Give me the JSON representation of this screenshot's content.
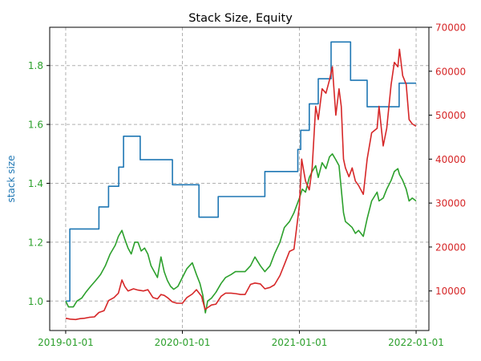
{
  "chart_data": {
    "type": "line",
    "title": "Stack Size, Equity",
    "xlabel": "",
    "ylabel": "stack size",
    "ylabel_right": "",
    "grid": true,
    "x_type": "date",
    "x_ticks": [
      "2019-01-01",
      "2020-01-01",
      "2021-01-01",
      "2022-01-01"
    ],
    "xlim": [
      "2018-11-12",
      "2022-02-10"
    ],
    "ylim_left": [
      0.9,
      1.93
    ],
    "ylim_right": [
      1000,
      70000
    ],
    "y_ticks_left": [
      "1.0",
      "1.2",
      "1.4",
      "1.6",
      "1.8"
    ],
    "y_ticks_right": [
      "10000",
      "20000",
      "30000",
      "40000",
      "50000",
      "60000",
      "70000"
    ],
    "colors": {
      "stack_size": "#1f77b4",
      "equity": "#2ca02c",
      "price": "#d62728",
      "grid": "#b0b0b0",
      "x_tick_labels": "#2ca02c",
      "left_tick_labels": "#2ca02c",
      "right_tick_labels": "#d62728",
      "left_axis_label": "#1f77b4"
    },
    "series": [
      {
        "key": "stack_size",
        "axis": "left",
        "style": "step",
        "color": "#1f77b4",
        "x": [
          "2019-01-01",
          "2019-01-14",
          "2019-03-15",
          "2019-04-15",
          "2019-05-15",
          "2019-06-16",
          "2019-07-01",
          "2019-08-22",
          "2019-09-15",
          "2019-11-18",
          "2019-12-01",
          "2020-02-22",
          "2020-04-22",
          "2020-07-15",
          "2020-09-15",
          "2020-12-01",
          "2020-12-27",
          "2021-01-05",
          "2021-02-01",
          "2021-03-01",
          "2021-04-10",
          "2021-05-15",
          "2021-06-10",
          "2021-07-15",
          "2021-08-01",
          "2021-09-15",
          "2021-10-01",
          "2021-11-09",
          "2021-11-25",
          "2022-01-01"
        ],
        "y": [
          1.0,
          1.245,
          1.245,
          1.32,
          1.39,
          1.455,
          1.56,
          1.48,
          1.48,
          1.48,
          1.395,
          1.285,
          1.355,
          1.355,
          1.44,
          1.44,
          1.515,
          1.58,
          1.67,
          1.755,
          1.88,
          1.88,
          1.75,
          1.75,
          1.66,
          1.66,
          1.66,
          1.74,
          1.74,
          1.74
        ]
      },
      {
        "key": "equity",
        "axis": "left",
        "color": "#2ca02c",
        "x": [
          "2019-01-01",
          "2019-01-10",
          "2019-01-25",
          "2019-02-05",
          "2019-02-20",
          "2019-03-05",
          "2019-03-20",
          "2019-04-05",
          "2019-04-20",
          "2019-05-05",
          "2019-05-20",
          "2019-06-05",
          "2019-06-15",
          "2019-06-26",
          "2019-07-05",
          "2019-07-15",
          "2019-07-25",
          "2019-08-05",
          "2019-08-15",
          "2019-08-25",
          "2019-09-05",
          "2019-09-15",
          "2019-09-25",
          "2019-10-05",
          "2019-10-15",
          "2019-10-26",
          "2019-11-05",
          "2019-11-15",
          "2019-11-25",
          "2019-12-05",
          "2019-12-18",
          "2020-01-01",
          "2020-01-15",
          "2020-02-01",
          "2020-02-14",
          "2020-02-25",
          "2020-03-05",
          "2020-03-13",
          "2020-03-20",
          "2020-04-01",
          "2020-04-15",
          "2020-05-01",
          "2020-05-15",
          "2020-06-01",
          "2020-06-15",
          "2020-07-01",
          "2020-07-15",
          "2020-08-01",
          "2020-08-15",
          "2020-09-01",
          "2020-09-15",
          "2020-10-01",
          "2020-10-15",
          "2020-11-01",
          "2020-11-15",
          "2020-12-01",
          "2020-12-15",
          "2021-01-01",
          "2021-01-10",
          "2021-01-20",
          "2021-02-01",
          "2021-02-10",
          "2021-02-21",
          "2021-03-01",
          "2021-03-13",
          "2021-03-25",
          "2021-04-05",
          "2021-04-14",
          "2021-04-25",
          "2021-05-05",
          "2021-05-12",
          "2021-05-19",
          "2021-05-25",
          "2021-06-05",
          "2021-06-15",
          "2021-06-25",
          "2021-07-05",
          "2021-07-20",
          "2021-08-01",
          "2021-08-15",
          "2021-09-01",
          "2021-09-07",
          "2021-09-20",
          "2021-10-01",
          "2021-10-15",
          "2021-10-25",
          "2021-11-05",
          "2021-11-10",
          "2021-11-20",
          "2021-12-01",
          "2021-12-10",
          "2021-12-20",
          "2022-01-01"
        ],
        "y": [
          1.0,
          0.98,
          0.98,
          1.0,
          1.01,
          1.03,
          1.05,
          1.07,
          1.09,
          1.12,
          1.16,
          1.19,
          1.22,
          1.24,
          1.21,
          1.18,
          1.16,
          1.2,
          1.2,
          1.17,
          1.18,
          1.16,
          1.12,
          1.1,
          1.08,
          1.15,
          1.1,
          1.07,
          1.05,
          1.04,
          1.05,
          1.08,
          1.11,
          1.13,
          1.09,
          1.06,
          1.02,
          0.96,
          1.0,
          1.01,
          1.03,
          1.06,
          1.08,
          1.09,
          1.1,
          1.1,
          1.1,
          1.12,
          1.15,
          1.12,
          1.1,
          1.12,
          1.16,
          1.2,
          1.25,
          1.27,
          1.3,
          1.35,
          1.38,
          1.37,
          1.42,
          1.44,
          1.46,
          1.42,
          1.47,
          1.45,
          1.49,
          1.5,
          1.48,
          1.46,
          1.38,
          1.3,
          1.27,
          1.26,
          1.25,
          1.23,
          1.24,
          1.22,
          1.28,
          1.34,
          1.37,
          1.34,
          1.35,
          1.38,
          1.41,
          1.44,
          1.45,
          1.43,
          1.41,
          1.38,
          1.34,
          1.35,
          1.34
        ]
      },
      {
        "key": "price",
        "axis": "right",
        "color": "#d62728",
        "x": [
          "2019-01-01",
          "2019-01-15",
          "2019-02-01",
          "2019-02-15",
          "2019-03-01",
          "2019-03-15",
          "2019-04-01",
          "2019-04-15",
          "2019-05-01",
          "2019-05-15",
          "2019-06-01",
          "2019-06-15",
          "2019-06-26",
          "2019-07-05",
          "2019-07-15",
          "2019-08-01",
          "2019-08-15",
          "2019-09-01",
          "2019-09-15",
          "2019-10-01",
          "2019-10-15",
          "2019-10-26",
          "2019-11-05",
          "2019-11-15",
          "2019-12-01",
          "2019-12-15",
          "2020-01-01",
          "2020-01-15",
          "2020-02-01",
          "2020-02-14",
          "2020-03-01",
          "2020-03-12",
          "2020-03-20",
          "2020-04-01",
          "2020-04-15",
          "2020-05-01",
          "2020-05-15",
          "2020-06-01",
          "2020-06-15",
          "2020-07-01",
          "2020-07-15",
          "2020-08-01",
          "2020-08-15",
          "2020-09-01",
          "2020-09-15",
          "2020-10-01",
          "2020-10-15",
          "2020-11-01",
          "2020-11-15",
          "2020-12-01",
          "2020-12-15",
          "2021-01-01",
          "2021-01-08",
          "2021-01-20",
          "2021-02-01",
          "2021-02-10",
          "2021-02-21",
          "2021-03-01",
          "2021-03-13",
          "2021-03-25",
          "2021-04-05",
          "2021-04-14",
          "2021-04-25",
          "2021-05-05",
          "2021-05-12",
          "2021-05-19",
          "2021-05-25",
          "2021-06-05",
          "2021-06-15",
          "2021-06-25",
          "2021-07-05",
          "2021-07-20",
          "2021-08-01",
          "2021-08-15",
          "2021-09-01",
          "2021-09-07",
          "2021-09-20",
          "2021-10-01",
          "2021-10-15",
          "2021-10-25",
          "2021-11-05",
          "2021-11-10",
          "2021-11-20",
          "2021-12-01",
          "2021-12-10",
          "2021-12-20",
          "2022-01-01"
        ],
        "y": [
          3800,
          3600,
          3500,
          3700,
          3800,
          4000,
          4100,
          5100,
          5500,
          7800,
          8500,
          9500,
          12500,
          11000,
          10000,
          10500,
          10200,
          10000,
          10300,
          8500,
          8200,
          9200,
          9000,
          8500,
          7500,
          7200,
          7200,
          8500,
          9300,
          10300,
          8800,
          5800,
          6200,
          6800,
          7000,
          8800,
          9500,
          9500,
          9400,
          9200,
          9200,
          11500,
          11800,
          11600,
          10500,
          10800,
          11400,
          13500,
          16000,
          19000,
          19500,
          29500,
          40000,
          35000,
          33000,
          38000,
          52000,
          49000,
          56000,
          55000,
          58000,
          61000,
          50000,
          56000,
          52000,
          40000,
          38000,
          36000,
          38000,
          35000,
          34000,
          32000,
          40000,
          46000,
          47000,
          52000,
          43000,
          47000,
          57000,
          62000,
          61000,
          65000,
          59000,
          57000,
          49000,
          48000,
          47500
        ]
      }
    ]
  }
}
